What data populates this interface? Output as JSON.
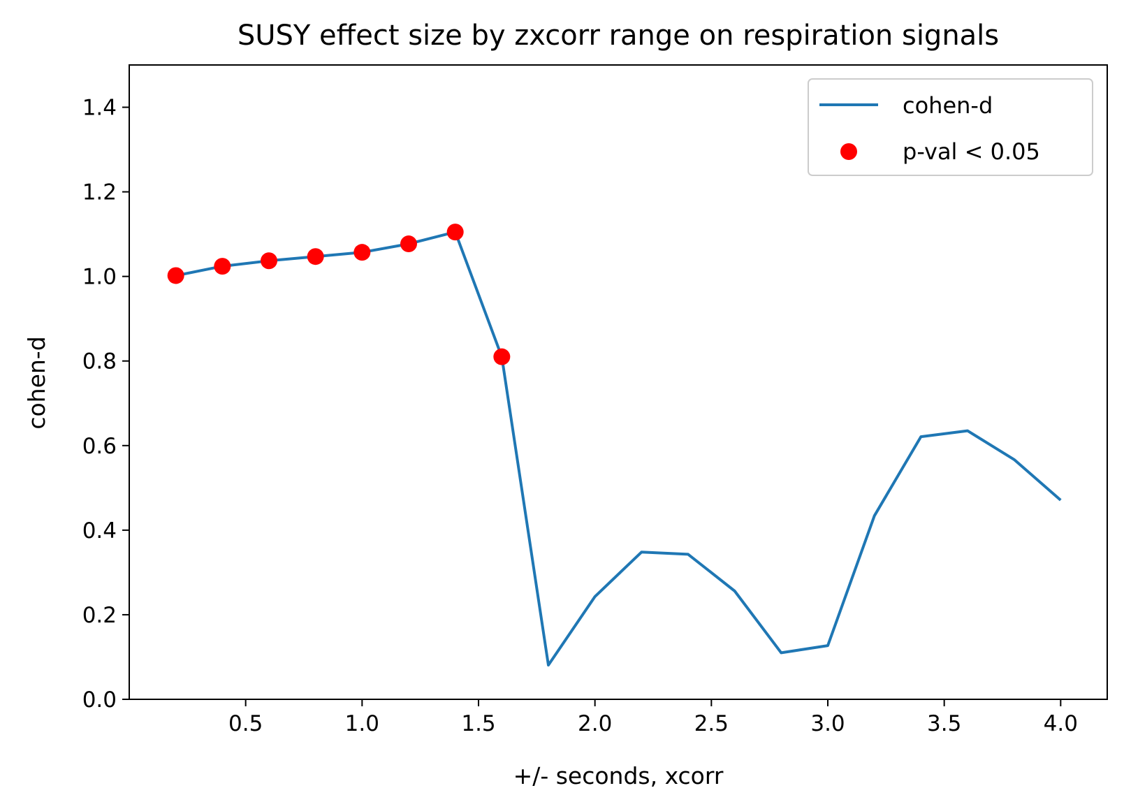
{
  "chart_data": {
    "type": "line",
    "title": "SUSY effect size by zxcorr range on respiration signals",
    "xlabel": "+/- seconds, xcorr",
    "ylabel": "cohen-d",
    "xlim": [
      0.0,
      4.2
    ],
    "ylim": [
      0.0,
      1.5
    ],
    "grid": false,
    "legend_position": "top-right",
    "x_ticks": [
      0.5,
      1.0,
      1.5,
      2.0,
      2.5,
      3.0,
      3.5,
      4.0
    ],
    "x_tick_labels": [
      "0.5",
      "1.0",
      "1.5",
      "2.0",
      "2.5",
      "3.0",
      "3.5",
      "4.0"
    ],
    "y_ticks": [
      0.0,
      0.2,
      0.4,
      0.6,
      0.8,
      1.0,
      1.2,
      1.4
    ],
    "y_tick_labels": [
      "0.0",
      "0.2",
      "0.4",
      "0.6",
      "0.8",
      "1.0",
      "1.2",
      "1.4"
    ],
    "series": [
      {
        "name": "cohen-d",
        "kind": "line",
        "color": "#1f77b4",
        "x": [
          0.2,
          0.4,
          0.6,
          0.8,
          1.0,
          1.2,
          1.4,
          1.6,
          1.8,
          2.0,
          2.2,
          2.4,
          2.6,
          2.8,
          3.0,
          3.2,
          3.4,
          3.6,
          3.8,
          4.0
        ],
        "y": [
          1.002,
          1.024,
          1.037,
          1.047,
          1.057,
          1.077,
          1.105,
          0.81,
          0.081,
          0.243,
          0.348,
          0.343,
          0.256,
          0.11,
          0.127,
          0.434,
          0.621,
          0.635,
          0.567,
          0.471
        ]
      },
      {
        "name": "p-val < 0.05",
        "kind": "scatter",
        "color": "#ff0000",
        "x": [
          0.2,
          0.4,
          0.6,
          0.8,
          1.0,
          1.2,
          1.4,
          1.6
        ],
        "y": [
          1.002,
          1.024,
          1.037,
          1.047,
          1.057,
          1.077,
          1.105,
          0.81
        ]
      }
    ]
  }
}
